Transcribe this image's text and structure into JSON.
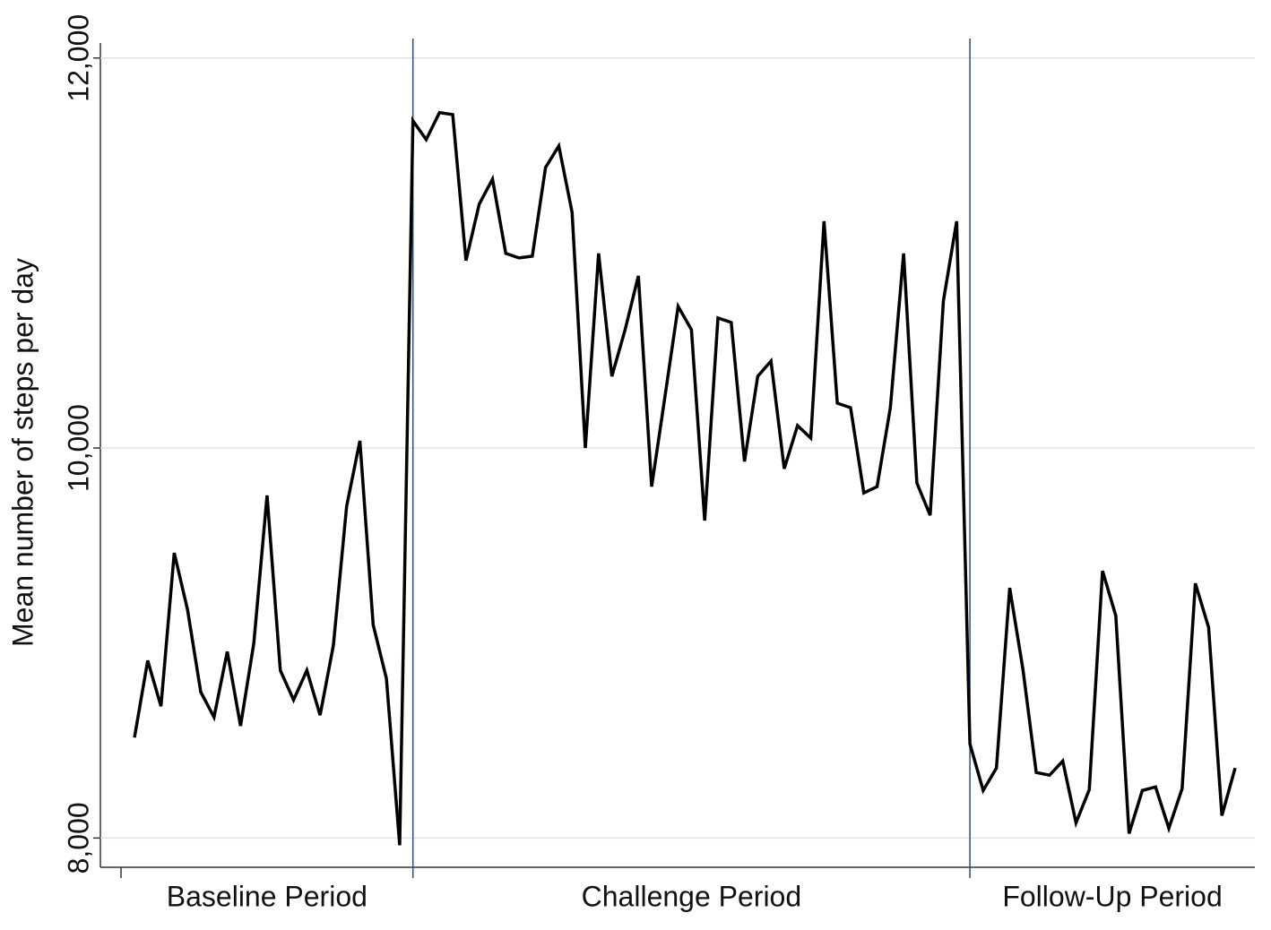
{
  "chart_data": {
    "type": "line",
    "y_label": "Mean number of steps per day",
    "categories": [
      null,
      null,
      null,
      null,
      null,
      null,
      null,
      null,
      null,
      null,
      null,
      null,
      null,
      null,
      null,
      null,
      null,
      null,
      null,
      null,
      null,
      null,
      null,
      null,
      null,
      null,
      null,
      null,
      null,
      null,
      null,
      null,
      null,
      null,
      null,
      null,
      null,
      null,
      null,
      null,
      null,
      null,
      null,
      null,
      null,
      null,
      null,
      null,
      null,
      null,
      null,
      null,
      null,
      null,
      null,
      null,
      null,
      null,
      null,
      null,
      null,
      null,
      null,
      null,
      null,
      null,
      null,
      null,
      null,
      null,
      null,
      null,
      null,
      null,
      null,
      null,
      null,
      null,
      null,
      null,
      null,
      null,
      null,
      null
    ],
    "series": [
      {
        "color": "#000000",
        "values": [
          8515,
          8910,
          8676,
          9462,
          9172,
          8749,
          8620,
          8956,
          8575,
          8998,
          9757,
          8860,
          8708,
          8860,
          8630,
          8988,
          9701,
          10037,
          9094,
          8818,
          7963,
          11678,
          11582,
          11720,
          11710,
          10961,
          11251,
          11379,
          10998,
          10975,
          10984,
          11439,
          11549,
          11209,
          10000,
          10998,
          10368,
          10607,
          10883,
          9802,
          10262,
          10726,
          10607,
          9628,
          10667,
          10644,
          9931,
          10368,
          10446,
          9894,
          10115,
          10051,
          11163,
          10230,
          10207,
          9770,
          9802,
          10207,
          10998,
          9821,
          9655,
          10754,
          11163,
          8483,
          8244,
          8359,
          9283,
          8864,
          8336,
          8322,
          8395,
          8078,
          8248,
          9370,
          9140,
          8023,
          8244,
          8262,
          8050,
          8253,
          9306,
          9080,
          8115,
          8359
        ]
      }
    ],
    "periods": [
      {
        "label": "Baseline Period",
        "days": 21
      },
      {
        "label": "Challenge Period",
        "days": 42
      },
      {
        "label": "Follow-Up Period",
        "days": 21
      }
    ],
    "ylim": [
      7850,
      12100
    ],
    "yticks": [
      {
        "value": 8000,
        "label": "8,000"
      },
      {
        "value": 10000,
        "label": "10,000"
      },
      {
        "value": 12000,
        "label": "12,000"
      }
    ],
    "grid": true
  }
}
